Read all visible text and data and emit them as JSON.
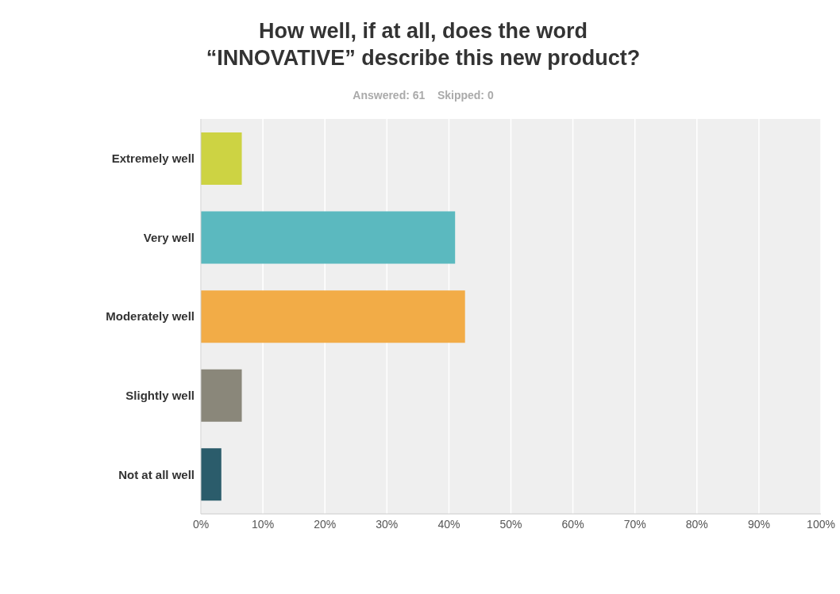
{
  "chart_data": {
    "type": "bar",
    "orientation": "horizontal",
    "title": "How well, if at all, does the word “INNOVATIVE” describe this new product?",
    "subtitle": "Answered: 61    Skipped: 0",
    "categories": [
      "Extremely well",
      "Very well",
      "Moderately well",
      "Slightly well",
      "Not at all well"
    ],
    "values": [
      6.6,
      41.0,
      42.6,
      6.6,
      3.3
    ],
    "colors": [
      "#cdd343",
      "#5bb9bf",
      "#f2ac47",
      "#8a877a",
      "#2b5c6b"
    ],
    "xlim": [
      0,
      100
    ],
    "xticks": [
      {
        "value": 0,
        "label": "0%"
      },
      {
        "value": 10,
        "label": "10%"
      },
      {
        "value": 20,
        "label": "20%"
      },
      {
        "value": 30,
        "label": "30%"
      },
      {
        "value": 40,
        "label": "40%"
      },
      {
        "value": 50,
        "label": "50%"
      },
      {
        "value": 60,
        "label": "60%"
      },
      {
        "value": 70,
        "label": "70%"
      },
      {
        "value": 80,
        "label": "80%"
      },
      {
        "value": 90,
        "label": "90%"
      },
      {
        "value": 100,
        "label": "100%"
      }
    ],
    "grid": "x",
    "legend": false
  }
}
